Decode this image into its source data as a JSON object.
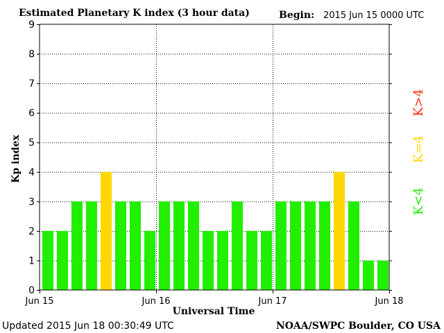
{
  "header": {
    "title": "Estimated Planetary K index (3 hour data)",
    "begin_label": "Begin:",
    "begin_value": "2015 Jun 15 0000 UTC"
  },
  "footer": {
    "updated": "Updated 2015 Jun 18 00:30:49 UTC",
    "source": "NOAA/SWPC Boulder, CO USA"
  },
  "legend": {
    "low": "K<4",
    "mid": "K=4",
    "high": "K>4"
  },
  "colors": {
    "low": "#22ee00",
    "mid": "#ffd700",
    "high": "#ff3010",
    "axis": "#000000",
    "grid": "#000000"
  },
  "chart_data": {
    "type": "bar",
    "title": "Estimated Planetary K index (3 hour data)",
    "xlabel": "Universal Time",
    "ylabel": "Kp index",
    "ylim": [
      0,
      9
    ],
    "yticks": [
      "0",
      "1",
      "2",
      "3",
      "4",
      "5",
      "6",
      "7",
      "8",
      "9"
    ],
    "xticks": [
      "Jun 15",
      "Jun 16",
      "Jun 17",
      "Jun 18"
    ],
    "grid": true,
    "values": [
      2,
      2,
      3,
      3,
      4,
      3,
      3,
      2,
      3,
      3,
      3,
      2,
      2,
      3,
      2,
      2,
      3,
      3,
      3,
      3,
      4,
      3,
      1,
      1
    ]
  }
}
